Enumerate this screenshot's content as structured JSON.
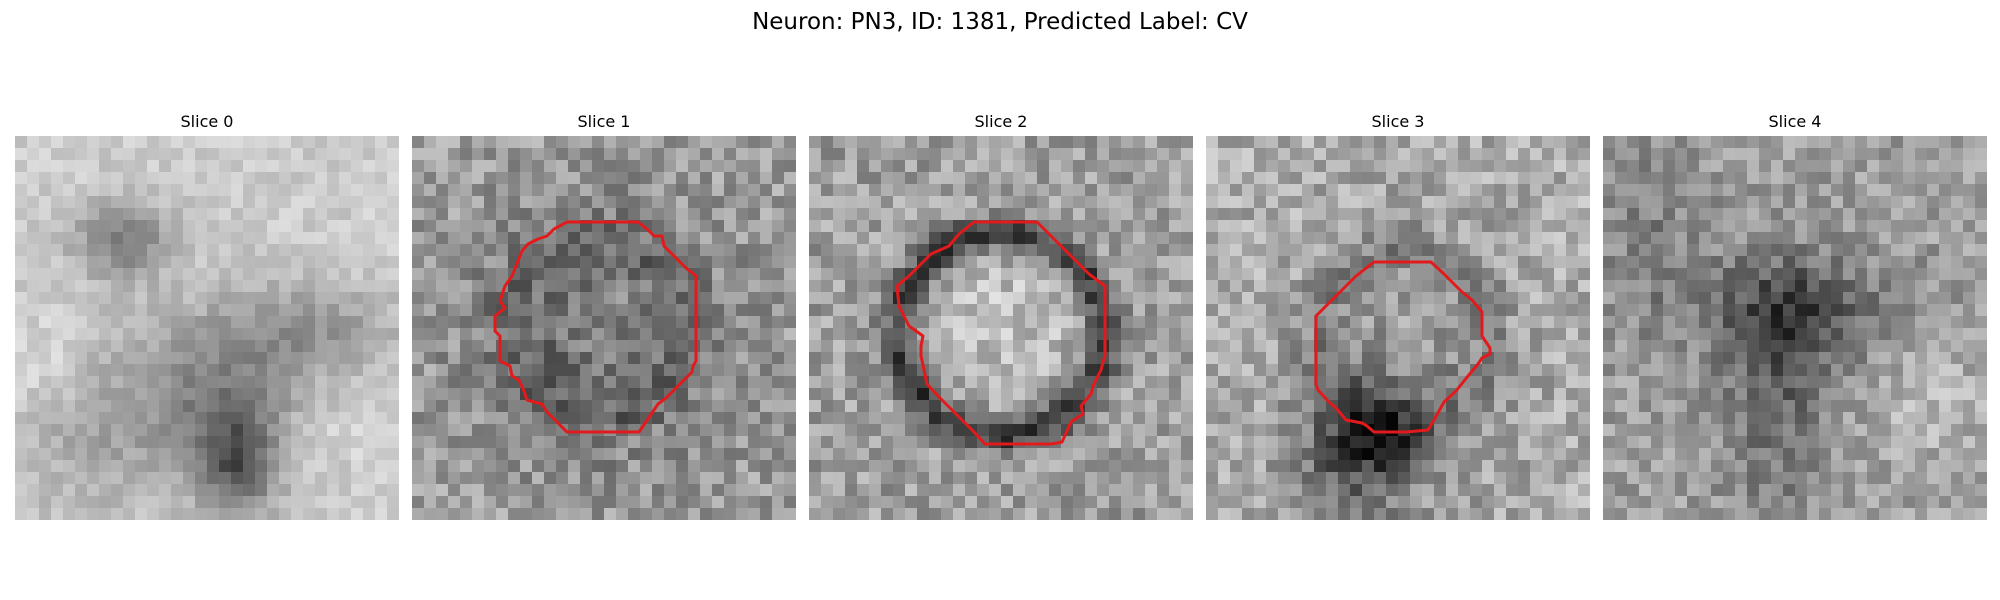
{
  "figure": {
    "title": "Neuron: PN3, ID: 1381, Predicted Label: CV",
    "contour_color": "#e31a1c",
    "colormap": "gray",
    "slices": [
      {
        "label": "Slice 0",
        "has_contour": false
      },
      {
        "label": "Slice 1",
        "has_contour": true
      },
      {
        "label": "Slice 2",
        "has_contour": true
      },
      {
        "label": "Slice 3",
        "has_contour": true
      },
      {
        "label": "Slice 4",
        "has_contour": false
      }
    ]
  }
}
